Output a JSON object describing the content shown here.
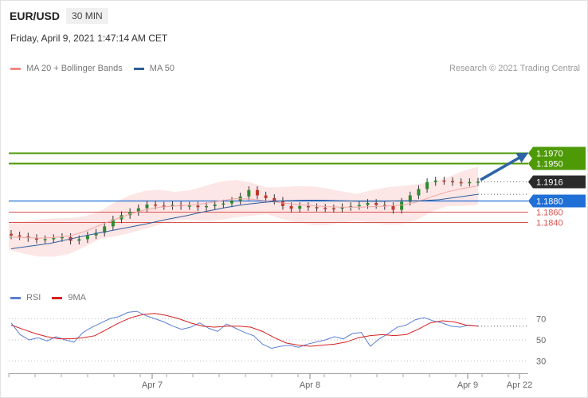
{
  "header": {
    "symbol": "EUR/USD",
    "timeframe": "30 MIN",
    "datetime": "Friday, April 9, 2021 1:47:14 AM CET",
    "credit": "Research © 2021 Trading Central"
  },
  "legend_main": [
    {
      "label": "MA 20 + Bollinger Bands",
      "color": "#f08a8a"
    },
    {
      "label": "MA 50",
      "color": "#2f5f9a"
    }
  ],
  "legend_rsi": [
    {
      "label": "RSI",
      "color": "#5b7fd6"
    },
    {
      "label": "9MA",
      "color": "#d62020"
    }
  ],
  "colors": {
    "target": "#4e9a06",
    "current": "#2b2b2b",
    "pivot": "#1f6fd6",
    "support": "#d9534f",
    "arrow": "#2e64a6",
    "bull": "#2e8b2e",
    "bear": "#c0392b",
    "bands": "#fde3e3"
  },
  "chart_data": [
    {
      "type": "candlestick",
      "title": "EUR/USD",
      "x_ticks": [
        "Apr 7",
        "Apr 8",
        "Apr 9",
        "Apr 22"
      ],
      "levels": [
        {
          "value": 1.197,
          "label": "1.1970",
          "kind": "target"
        },
        {
          "value": 1.195,
          "label": "1.1950",
          "kind": "target"
        },
        {
          "value": 1.1916,
          "label": "1.1916",
          "kind": "current"
        },
        {
          "value": 1.188,
          "label": "1.1880",
          "kind": "pivot"
        },
        {
          "value": 1.186,
          "label": "1.1860",
          "kind": "support"
        },
        {
          "value": 1.184,
          "label": "1.1840",
          "kind": "support"
        }
      ],
      "close_path": [
        1.1815,
        1.1813,
        1.181,
        1.1807,
        1.1808,
        1.181,
        1.1812,
        1.1805,
        1.1808,
        1.1815,
        1.182,
        1.1832,
        1.1845,
        1.1853,
        1.1859,
        1.1866,
        1.1873,
        1.1871,
        1.187,
        1.1872,
        1.187,
        1.1871,
        1.1868,
        1.187,
        1.1873,
        1.1875,
        1.188,
        1.1888,
        1.19,
        1.189,
        1.1885,
        1.188,
        1.187,
        1.1865,
        1.187,
        1.1868,
        1.1867,
        1.1866,
        1.1865,
        1.1868,
        1.187,
        1.1872,
        1.1876,
        1.1872,
        1.187,
        1.1863,
        1.1878,
        1.189,
        1.1902,
        1.1915,
        1.1918,
        1.1917,
        1.1915,
        1.1914,
        1.1915,
        1.1916
      ],
      "ma20_path": [
        1.1812,
        1.1811,
        1.181,
        1.1811,
        1.1814,
        1.1822,
        1.1834,
        1.1845,
        1.1855,
        1.1863,
        1.1868,
        1.187,
        1.1872,
        1.1875,
        1.188,
        1.1884,
        1.1883,
        1.188,
        1.1876,
        1.1873,
        1.1871,
        1.1869,
        1.1868,
        1.1868,
        1.1869,
        1.187,
        1.1872,
        1.1878,
        1.1888,
        1.1897,
        1.1903,
        1.1908
      ],
      "ma50_path": [
        1.179,
        1.1795,
        1.18,
        1.1808,
        1.1816,
        1.1823,
        1.183,
        1.1837,
        1.1845,
        1.1852,
        1.186,
        1.1867,
        1.1873,
        1.1877,
        1.188,
        1.1881,
        1.1881,
        1.188,
        1.1879,
        1.1879,
        1.188,
        1.188,
        1.1882,
        1.1887,
        1.1892
      ]
    },
    {
      "type": "line",
      "title": "RSI",
      "y_ticks": [
        70,
        50,
        30
      ],
      "series": [
        {
          "name": "RSI",
          "values": [
            66,
            55,
            50,
            52,
            49,
            53,
            50,
            48,
            57,
            62,
            66,
            70,
            72,
            76,
            77,
            73,
            70,
            67,
            63,
            60,
            62,
            66,
            61,
            58,
            65,
            61,
            57,
            54,
            46,
            42,
            44,
            45,
            43,
            46,
            48,
            50,
            53,
            51,
            56,
            57,
            44,
            51,
            56,
            62,
            64,
            69,
            71,
            68,
            66,
            63,
            62,
            64,
            63
          ]
        },
        {
          "name": "9MA",
          "values": [
            64,
            60,
            56,
            53,
            51,
            51,
            52,
            54,
            60,
            66,
            71,
            74,
            75,
            73,
            70,
            66,
            63,
            62,
            63,
            63,
            62,
            58,
            52,
            47,
            45,
            44,
            45,
            46,
            48,
            52,
            54,
            55,
            54,
            55,
            60,
            66,
            68,
            67,
            64,
            63
          ]
        }
      ]
    }
  ]
}
